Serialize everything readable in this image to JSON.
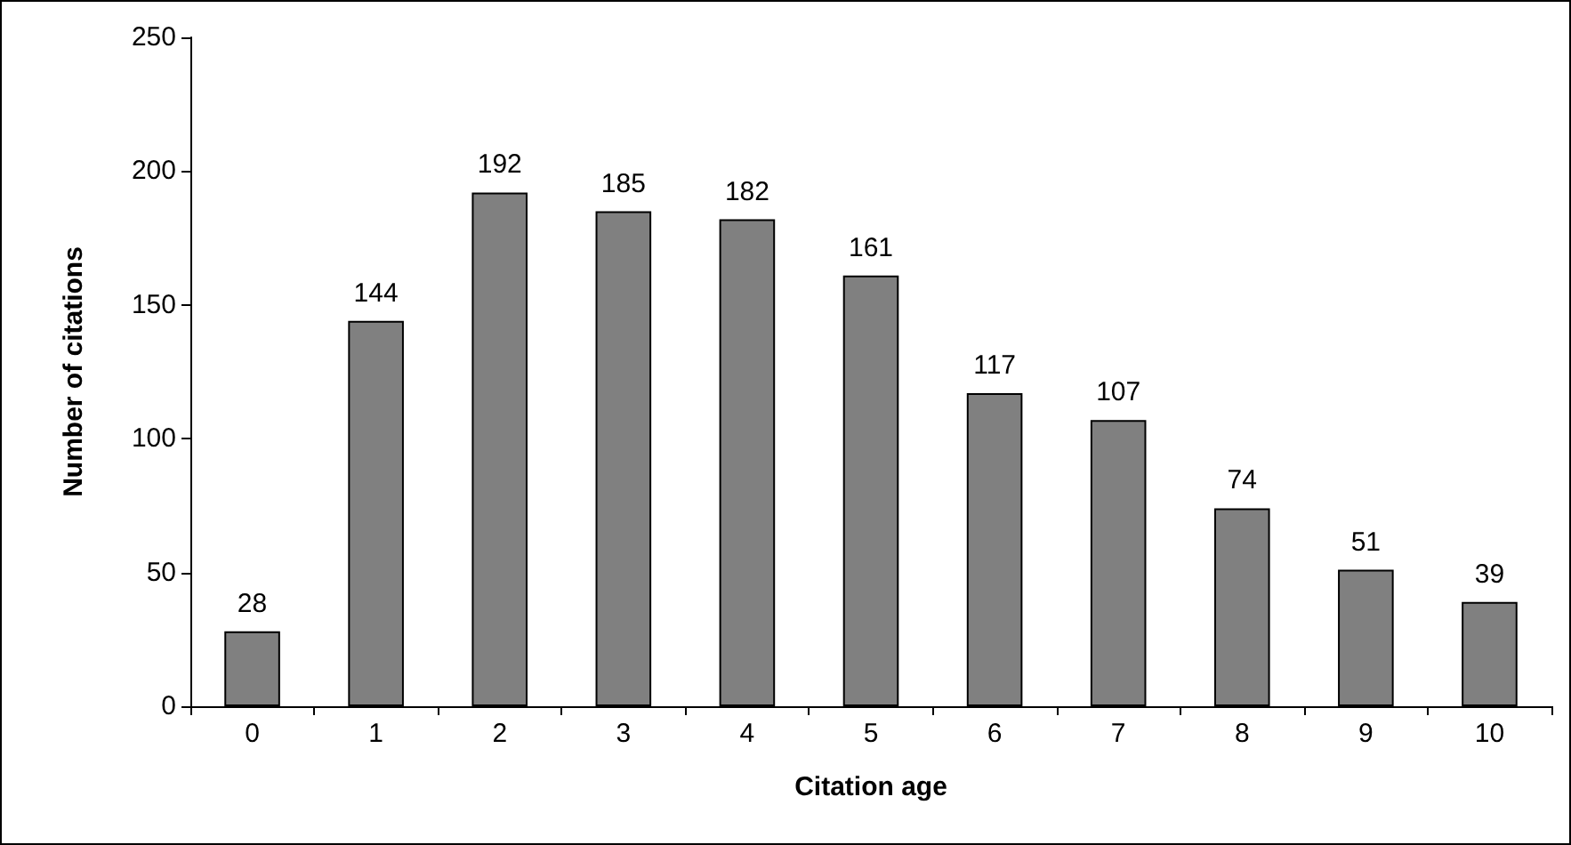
{
  "chart_data": {
    "type": "bar",
    "xlabel": "Citation age",
    "ylabel": "Number of citations",
    "categories": [
      "0",
      "1",
      "2",
      "3",
      "4",
      "5",
      "6",
      "7",
      "8",
      "9",
      "10"
    ],
    "values": [
      28,
      144,
      192,
      185,
      182,
      161,
      117,
      107,
      74,
      51,
      39
    ],
    "color": "#808080",
    "data_labels": true,
    "ylim": [
      0,
      250
    ],
    "yticks": [
      0,
      50,
      100,
      150,
      200,
      250
    ],
    "grid": false
  }
}
